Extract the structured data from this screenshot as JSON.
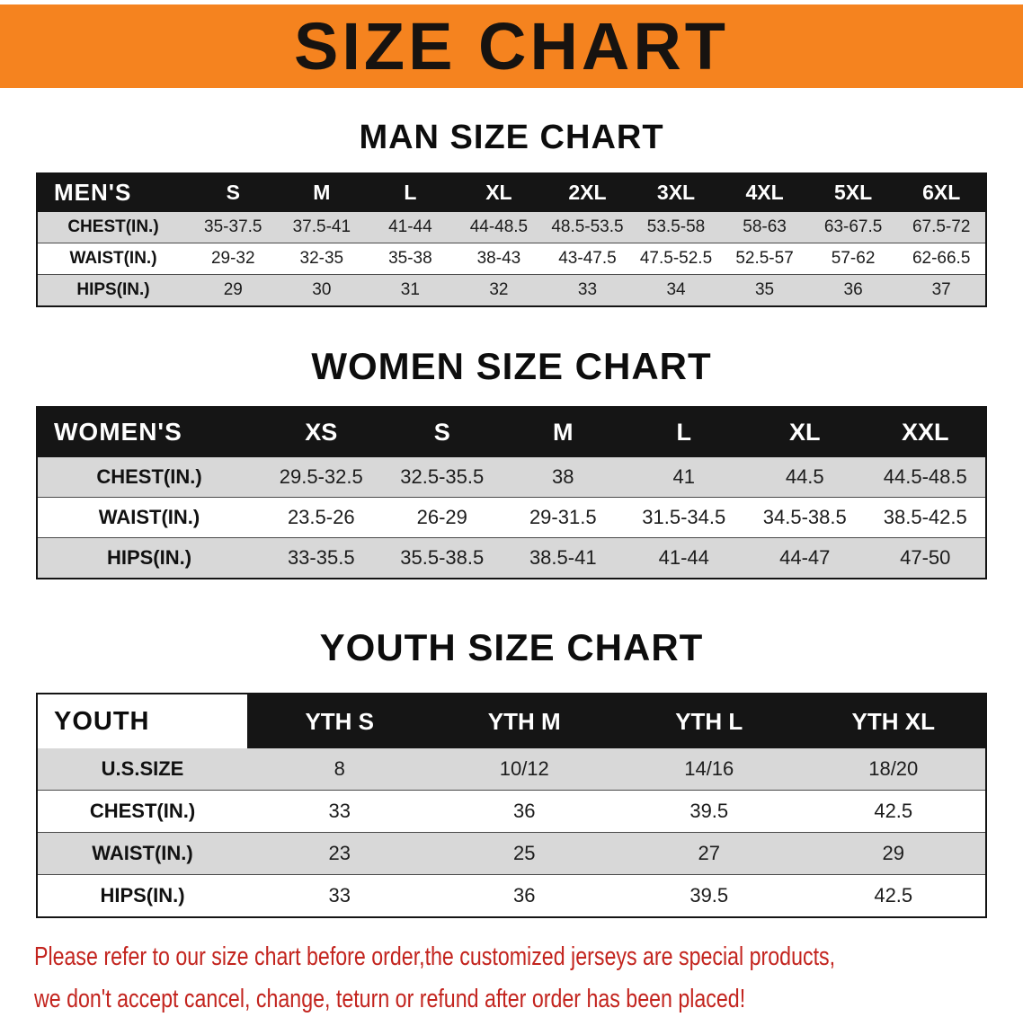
{
  "banner": {
    "title": "SIZE CHART"
  },
  "colors": {
    "banner_bg": "#f5831f",
    "table_header_bg": "#151515",
    "row_shade": "#d8d8d8",
    "notice_text": "#c3241e"
  },
  "sections": [
    {
      "id": "men",
      "heading": "MAN SIZE CHART",
      "table": {
        "header": [
          "MEN'S",
          "S",
          "M",
          "L",
          "XL",
          "2XL",
          "3XL",
          "4XL",
          "5XL",
          "6XL"
        ],
        "rows": [
          {
            "label": "CHEST(IN.)",
            "values": [
              "35-37.5",
              "37.5-41",
              "41-44",
              "44-48.5",
              "48.5-53.5",
              "53.5-58",
              "58-63",
              "63-67.5",
              "67.5-72"
            ]
          },
          {
            "label": "WAIST(IN.)",
            "values": [
              "29-32",
              "32-35",
              "35-38",
              "38-43",
              "43-47.5",
              "47.5-52.5",
              "52.5-57",
              "57-62",
              "62-66.5"
            ]
          },
          {
            "label": "HIPS(IN.)",
            "values": [
              "29",
              "30",
              "31",
              "32",
              "33",
              "34",
              "35",
              "36",
              "37"
            ]
          }
        ]
      }
    },
    {
      "id": "women",
      "heading": "WOMEN SIZE CHART",
      "table": {
        "header": [
          "WOMEN'S",
          "XS",
          "S",
          "M",
          "L",
          "XL",
          "XXL"
        ],
        "rows": [
          {
            "label": "CHEST(IN.)",
            "values": [
              "29.5-32.5",
              "32.5-35.5",
              "38",
              "41",
              "44.5",
              "44.5-48.5"
            ]
          },
          {
            "label": "WAIST(IN.)",
            "values": [
              "23.5-26",
              "26-29",
              "29-31.5",
              "31.5-34.5",
              "34.5-38.5",
              "38.5-42.5"
            ]
          },
          {
            "label": "HIPS(IN.)",
            "values": [
              "33-35.5",
              "35.5-38.5",
              "38.5-41",
              "41-44",
              "44-47",
              "47-50"
            ]
          }
        ]
      }
    },
    {
      "id": "youth",
      "heading": "YOUTH SIZE CHART",
      "table": {
        "header": [
          "YOUTH",
          "YTH S",
          "YTH M",
          "YTH L",
          "YTH XL"
        ],
        "rows": [
          {
            "label": "U.S.SIZE",
            "values": [
              "8",
              "10/12",
              "14/16",
              "18/20"
            ]
          },
          {
            "label": "CHEST(IN.)",
            "values": [
              "33",
              "36",
              "39.5",
              "42.5"
            ]
          },
          {
            "label": "WAIST(IN.)",
            "values": [
              "23",
              "25",
              "27",
              "29"
            ]
          },
          {
            "label": "HIPS(IN.)",
            "values": [
              "33",
              "36",
              "39.5",
              "42.5"
            ]
          }
        ]
      }
    }
  ],
  "notice": {
    "line1": "Please refer to our size chart before order,the customized jerseys are special products,",
    "line2": "we don't accept cancel, change, teturn or refund after order has been placed!"
  }
}
